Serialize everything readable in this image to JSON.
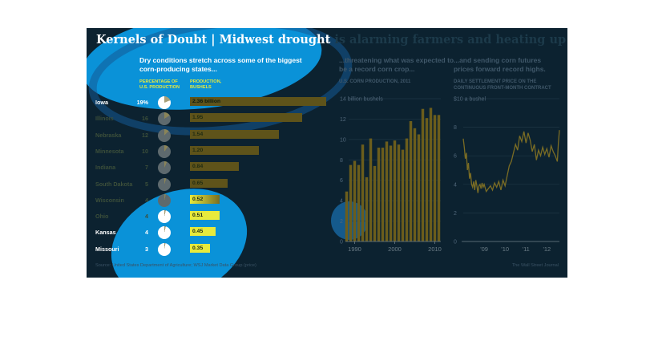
{
  "title": {
    "lead": "Kernels of Doubt | Midwest drought",
    "rest": " is alarming farmers and heating up commodities markets"
  },
  "subtitles": {
    "left": "Dry conditions stretch across some of the biggest corn-producing states...",
    "mid": "...threatening what was expected to be a record corn crop...",
    "right": "...and sending corn futures prices forward record highs."
  },
  "column_headers": {
    "percentage": "PERCENTAGE OF U.S. PRODUCTION",
    "production": "PRODUCTION, BUSHELS"
  },
  "mid_caption": "U.S. CORN PRODUCTION, 2011",
  "right_caption": "DAILY SETTLEMENT PRICE ON THE CONTINUOUS FRONT-MONTH CONTRACT",
  "source": "Source: United States Department of Agriculture; WSJ Market Data Group (price)",
  "credit": "The Wall Street Journal",
  "colors": {
    "background": "#0c2230",
    "highlight": "#0a92d8",
    "bar_dim": "#5e531a",
    "bar_bright": "#e7ea3c",
    "text_dim": "#3c4f3a"
  },
  "chart_data": [
    {
      "type": "bar",
      "title": "Dry conditions stretch across some of the biggest corn-producing states...",
      "categories": [
        "Iowa",
        "Illinois",
        "Nebraska",
        "Minnesota",
        "Indiana",
        "South Dakota",
        "Wisconsin",
        "Ohio",
        "Kansas",
        "Missouri"
      ],
      "percent_of_us_production": [
        19,
        16,
        12,
        10,
        7,
        5,
        4,
        4,
        4,
        3
      ],
      "percent_labels": [
        "19%",
        "16",
        "12",
        "10",
        "7",
        "5",
        "4",
        "4",
        "4",
        "3"
      ],
      "values": [
        2.36,
        1.95,
        1.54,
        1.2,
        0.84,
        0.65,
        0.52,
        0.51,
        0.45,
        0.35
      ],
      "value_labels": [
        "2.36 billion",
        "1.95",
        "1.54",
        "1.20",
        "0.84",
        "0.65",
        "0.52",
        "0.51",
        "0.45",
        "0.35"
      ],
      "unit": "billion bushels"
    },
    {
      "type": "bar",
      "title": "...threatening what was expected to be a record corn crop...",
      "ylabel": "U.S. CORN PRODUCTION, 2011",
      "x": [
        1988,
        1989,
        1990,
        1991,
        1992,
        1993,
        1994,
        1995,
        1996,
        1997,
        1998,
        1999,
        2000,
        2001,
        2002,
        2003,
        2004,
        2005,
        2006,
        2007,
        2008,
        2009,
        2010,
        2011
      ],
      "values": [
        4.9,
        7.5,
        7.9,
        7.5,
        9.5,
        6.3,
        10.1,
        7.4,
        9.2,
        9.2,
        9.8,
        9.4,
        9.9,
        9.5,
        9.0,
        10.1,
        11.8,
        11.1,
        10.5,
        13.0,
        12.1,
        13.1,
        12.4,
        12.4
      ],
      "ylim": [
        0,
        14
      ],
      "yticks": [
        0,
        2,
        4,
        6,
        8,
        10,
        12,
        14
      ],
      "ytick_labels": [
        "0",
        "2",
        "4",
        "6",
        "8",
        "10",
        "12",
        "14 billion bushels"
      ],
      "xticks": [
        1990,
        2000,
        2010
      ],
      "xtick_labels": [
        "1990",
        "2000",
        "2010"
      ]
    },
    {
      "type": "line",
      "title": "...and sending corn futures prices forward record highs.",
      "ylabel": "DAILY SETTLEMENT PRICE ON THE CONTINUOUS FRONT-MONTH CONTRACT",
      "x": [
        2008.0,
        2008.05,
        2008.1,
        2008.15,
        2008.2,
        2008.25,
        2008.3,
        2008.35,
        2008.4,
        2008.45,
        2008.5,
        2008.55,
        2008.6,
        2008.65,
        2008.7,
        2008.75,
        2008.8,
        2008.85,
        2008.9,
        2008.95,
        2009.0,
        2009.1,
        2009.2,
        2009.3,
        2009.4,
        2009.5,
        2009.6,
        2009.7,
        2009.8,
        2009.9,
        2010.0,
        2010.1,
        2010.2,
        2010.3,
        2010.4,
        2010.5,
        2010.6,
        2010.7,
        2010.8,
        2010.9,
        2011.0,
        2011.1,
        2011.2,
        2011.3,
        2011.4,
        2011.5,
        2011.6,
        2011.7,
        2011.8,
        2011.9,
        2012.0,
        2012.1,
        2012.2,
        2012.3,
        2012.4,
        2012.5,
        2012.55,
        2012.6
      ],
      "values": [
        7.2,
        6.6,
        5.8,
        6.2,
        5.0,
        5.5,
        4.4,
        4.8,
        4.0,
        3.8,
        4.2,
        3.6,
        4.3,
        3.9,
        3.4,
        3.9,
        4.0,
        3.7,
        4.1,
        3.8,
        4.0,
        3.5,
        3.7,
        3.9,
        3.6,
        4.1,
        3.8,
        4.2,
        3.6,
        4.3,
        3.9,
        4.6,
        5.3,
        5.6,
        6.2,
        6.8,
        6.4,
        7.4,
        7.0,
        7.7,
        6.9,
        7.6,
        7.1,
        6.3,
        6.8,
        5.7,
        6.4,
        6.0,
        6.6,
        6.1,
        6.5,
        5.9,
        6.7,
        6.3,
        6.0,
        5.6,
        6.9,
        7.8
      ],
      "ylim": [
        0,
        10
      ],
      "yticks": [
        0,
        2,
        4,
        6,
        8,
        10
      ],
      "ytick_labels": [
        "0",
        "2",
        "4",
        "6",
        "8",
        "$10 a bushel"
      ],
      "xticks": [
        2009,
        2010,
        2011,
        2012
      ],
      "xtick_labels": [
        "'09",
        "'10",
        "'11",
        "'12"
      ]
    }
  ]
}
